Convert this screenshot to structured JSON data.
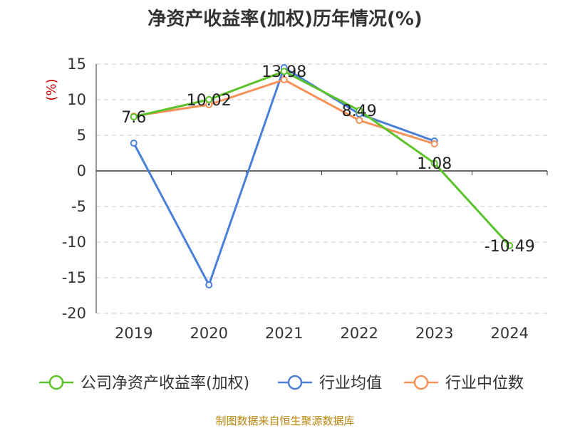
{
  "title": "净资产收益率(加权)历年情况(%)",
  "footer": "制图数据来自恒生聚源数据库",
  "unit": "(%)",
  "colors": {
    "company": "#5cc22a",
    "industry_avg": "#4a7fd6",
    "industry_median": "#f5925a",
    "unit": "#cc0000",
    "footer": "#b8860b"
  },
  "chart_data": {
    "type": "line",
    "title": "净资产收益率(加权)历年情况(%)",
    "xlabel": "",
    "ylabel": "(%)",
    "categories": [
      "2019",
      "2020",
      "2021",
      "2022",
      "2023",
      "2024"
    ],
    "ylim": [
      -20,
      15
    ],
    "yticks": [
      15,
      10,
      5,
      0,
      -5,
      -10,
      -15,
      -20
    ],
    "grid": true,
    "legend": "bottom",
    "series": [
      {
        "name": "公司净资产收益率(加权)",
        "color": "#5cc22a",
        "values": [
          7.6,
          10.02,
          13.98,
          8.49,
          1.08,
          -10.49
        ],
        "labels": [
          "7.6",
          "10.02",
          "13.98",
          "8.49",
          "1.08",
          "-10.49"
        ]
      },
      {
        "name": "行业均值",
        "color": "#4a7fd6",
        "values": [
          3.9,
          -16.0,
          14.5,
          8.0,
          4.2,
          null
        ]
      },
      {
        "name": "行业中位数",
        "color": "#f5925a",
        "values": [
          7.7,
          9.3,
          12.8,
          7.1,
          3.8,
          null
        ]
      }
    ]
  }
}
